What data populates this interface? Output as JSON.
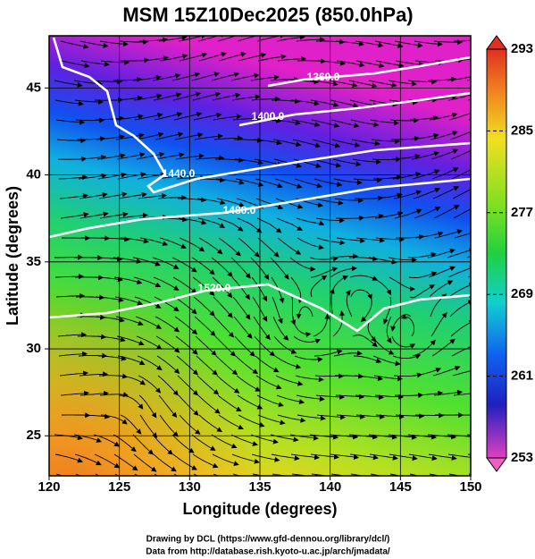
{
  "title": "MSM 15Z10Dec2025 (850.0hPa)",
  "map": {
    "x_label": "Longitude (degrees)",
    "y_label": "Latitude  (degrees)",
    "xlim": [
      120,
      150
    ],
    "xticks": [
      120,
      125,
      130,
      135,
      140,
      145,
      150
    ],
    "ylim": [
      22.7,
      48
    ],
    "yticks": [
      25,
      30,
      35,
      40,
      45
    ],
    "contour_labels": [
      "1360.0",
      "1400.0",
      "1440.0",
      "1480.0",
      "1520.0"
    ]
  },
  "colorbar": {
    "lim": [
      253,
      293
    ],
    "ticks": [
      253,
      261,
      269,
      277,
      285,
      293
    ]
  },
  "footer": [
    "Drawing by DCL (https://www.gfd-dennou.org/library/dcl/)",
    "Data from http://database.rish.kyoto-u.ac.jp/arch/jmadata/"
  ]
}
